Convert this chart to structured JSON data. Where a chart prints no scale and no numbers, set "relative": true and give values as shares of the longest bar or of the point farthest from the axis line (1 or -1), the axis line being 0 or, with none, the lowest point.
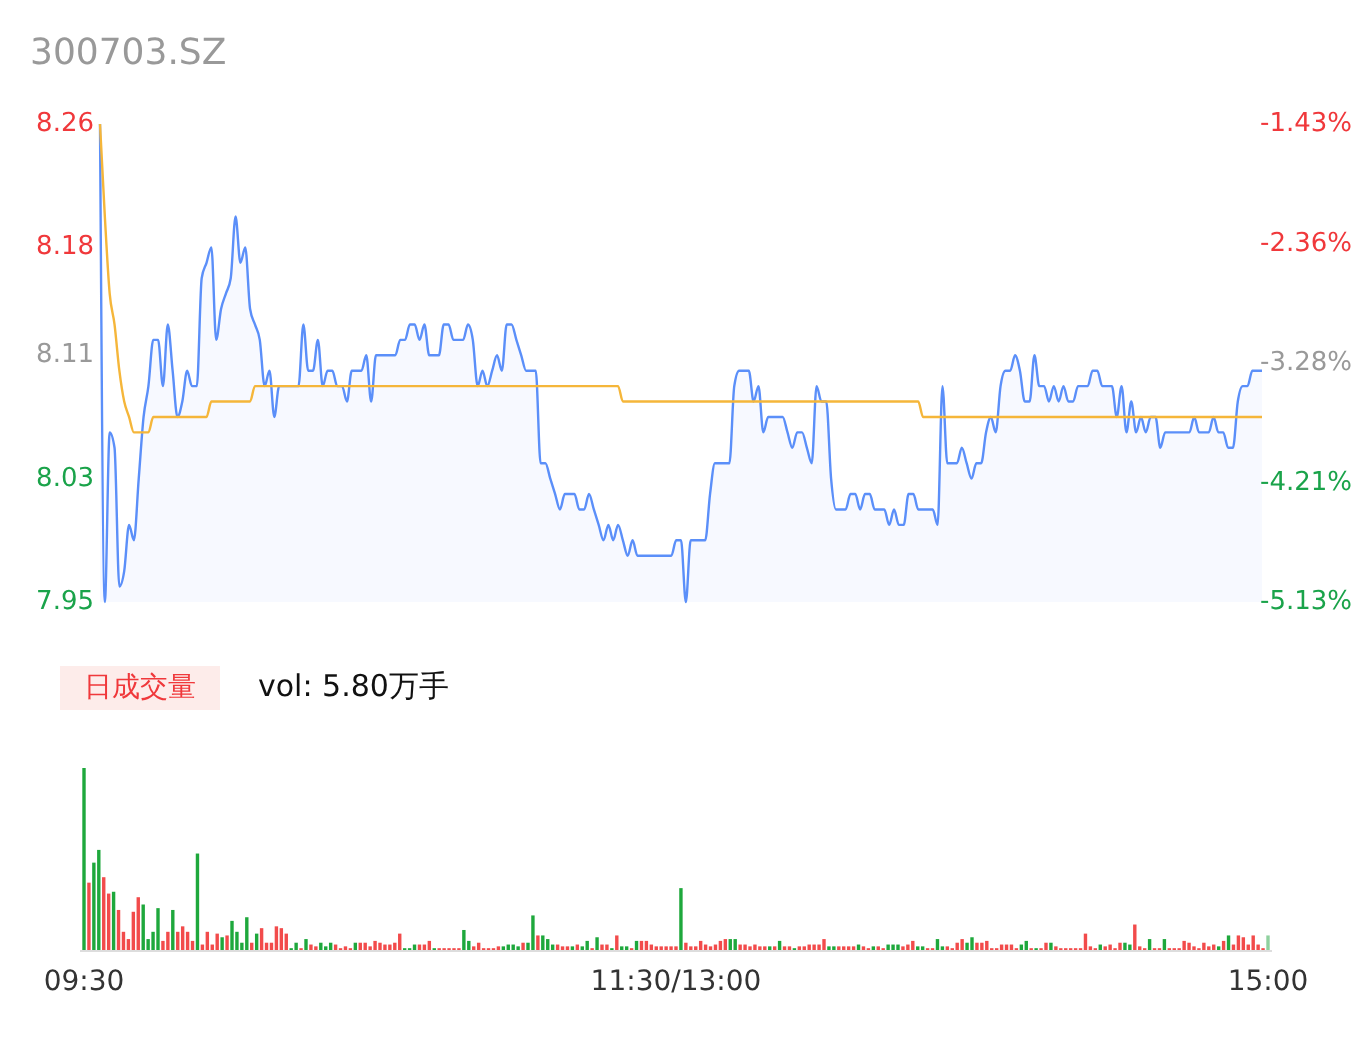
{
  "chart_data": [
    {
      "type": "line",
      "title": "300703.SZ",
      "categories": [
        null,
        null,
        null,
        null,
        null,
        null,
        null,
        null,
        null,
        null,
        null,
        null,
        null,
        null,
        null,
        null,
        null,
        null,
        null,
        null,
        null,
        null,
        null,
        null,
        null,
        null,
        null,
        null,
        null,
        null,
        null,
        null,
        null,
        null,
        null,
        null,
        null,
        null,
        null,
        null,
        null,
        null,
        null,
        null,
        null,
        null,
        null,
        null,
        null,
        null,
        null,
        null,
        null,
        null,
        null,
        null,
        null,
        null,
        null,
        null,
        null,
        null,
        null,
        null,
        null,
        null,
        null,
        null,
        null,
        null,
        null,
        null,
        null,
        null,
        null,
        null,
        null,
        null,
        null,
        null,
        null,
        null,
        null,
        null,
        null,
        null,
        null,
        null,
        null,
        null,
        null,
        null,
        null,
        null,
        null,
        null,
        null,
        null,
        null,
        null,
        null,
        null,
        null,
        null,
        null,
        null,
        null,
        null,
        null,
        null,
        null,
        null,
        null,
        null,
        null,
        null,
        null,
        null,
        null,
        null,
        null,
        null,
        null,
        null,
        null,
        null,
        null,
        null,
        null,
        null,
        null,
        null,
        null,
        null,
        null,
        null,
        null,
        null,
        null,
        null,
        null,
        null,
        null,
        null,
        null,
        null,
        null,
        null,
        null,
        null,
        null,
        null,
        null,
        null,
        null,
        null,
        null,
        null,
        null,
        null,
        null,
        null,
        null,
        null,
        null,
        null,
        null,
        null,
        null,
        null,
        null,
        null,
        null,
        null,
        null,
        null,
        null,
        null,
        null,
        null,
        null,
        null,
        null,
        null,
        null,
        null,
        null,
        null,
        null,
        null,
        null,
        null,
        null,
        null,
        null,
        null,
        null,
        null,
        null,
        null,
        null,
        null,
        null,
        null,
        null,
        null,
        null,
        null,
        null,
        null,
        null,
        null,
        null,
        null,
        null,
        null,
        null,
        null,
        null,
        null,
        null,
        null,
        null,
        null,
        null,
        null,
        null,
        null,
        null,
        null,
        null,
        null,
        null,
        null,
        null,
        null,
        null,
        null,
        null,
        null,
        null
      ],
      "ylim": [
        7.95,
        8.26
      ],
      "yticks": [
        7.95,
        8.03,
        8.11,
        8.18,
        8.26
      ],
      "y2lim": [
        -5.13,
        -1.43
      ],
      "y2ticks": [
        {
          "value": -5.13,
          "label": "-5.13%"
        },
        {
          "value": -4.21,
          "label": "-4.21%"
        },
        {
          "value": -3.28,
          "label": "-3.28%"
        },
        {
          "value": -2.36,
          "label": "-2.36%"
        },
        {
          "value": -1.43,
          "label": "-1.43%"
        }
      ],
      "series": [
        {
          "type": "area",
          "color": "#5b8ff9",
          "values": [
            8.26,
            7.95,
            8.06,
            8.05,
            7.96,
            7.97,
            8.0,
            7.99,
            8.03,
            8.07,
            8.09,
            8.12,
            8.12,
            8.09,
            8.13,
            8.1,
            8.07,
            8.08,
            8.1,
            8.09,
            8.09,
            8.16,
            8.17,
            8.18,
            8.12,
            8.14,
            8.15,
            8.16,
            8.2,
            8.17,
            8.18,
            8.14,
            8.13,
            8.12,
            8.09,
            8.1,
            8.07,
            8.09,
            8.09,
            8.09,
            8.09,
            8.09,
            8.13,
            8.1,
            8.1,
            8.12,
            8.09,
            8.1,
            8.1,
            8.09,
            8.09,
            8.08,
            8.1,
            8.1,
            8.1,
            8.11,
            8.08,
            8.11,
            8.11,
            8.11,
            8.11,
            8.11,
            8.12,
            8.12,
            8.13,
            8.13,
            8.12,
            8.13,
            8.11,
            8.11,
            8.11,
            8.13,
            8.13,
            8.12,
            8.12,
            8.12,
            8.13,
            8.12,
            8.09,
            8.1,
            8.09,
            8.1,
            8.11,
            8.1,
            8.13,
            8.13,
            8.12,
            8.11,
            8.1,
            8.1,
            8.1,
            8.04,
            8.04,
            8.03,
            8.02,
            8.01,
            8.02,
            8.02,
            8.02,
            8.01,
            8.01,
            8.02,
            8.01,
            8.0,
            7.99,
            8.0,
            7.99,
            8.0,
            7.99,
            7.98,
            7.99,
            7.98,
            7.98,
            7.98,
            7.98,
            7.98,
            7.98,
            7.98,
            7.98,
            7.99,
            7.99,
            7.95,
            7.99,
            7.99,
            7.99,
            7.99,
            8.02,
            8.04,
            8.04,
            8.04,
            8.04,
            8.09,
            8.1,
            8.1,
            8.1,
            8.08,
            8.09,
            8.06,
            8.07,
            8.07,
            8.07,
            8.07,
            8.06,
            8.05,
            8.06,
            8.06,
            8.05,
            8.04,
            8.09,
            8.08,
            8.08,
            8.03,
            8.01,
            8.01,
            8.01,
            8.02,
            8.02,
            8.01,
            8.02,
            8.02,
            8.01,
            8.01,
            8.01,
            8.0,
            8.01,
            8.0,
            8.0,
            8.02,
            8.02,
            8.01,
            8.01,
            8.01,
            8.01,
            8.0,
            8.09,
            8.04,
            8.04,
            8.04,
            8.05,
            8.04,
            8.03,
            8.04,
            8.04,
            8.06,
            8.07,
            8.06,
            8.09,
            8.1,
            8.1,
            8.11,
            8.1,
            8.08,
            8.08,
            8.11,
            8.09,
            8.09,
            8.08,
            8.09,
            8.08,
            8.09,
            8.08,
            8.08,
            8.09,
            8.09,
            8.09,
            8.1,
            8.1,
            8.09,
            8.09,
            8.09,
            8.07,
            8.09,
            8.06,
            8.08,
            8.06,
            8.07,
            8.06,
            8.07,
            8.07,
            8.05,
            8.06,
            8.06,
            8.06,
            8.06,
            8.06,
            8.06,
            8.07,
            8.06,
            8.06,
            8.06,
            8.07,
            8.06,
            8.06,
            8.05,
            8.05,
            8.08,
            8.09,
            8.09,
            8.1,
            8.1,
            8.1
          ]
        },
        {
          "type": "line",
          "color": "#f5b63a",
          "values": [
            8.26,
            8.2,
            8.15,
            8.13,
            8.1,
            8.08,
            8.07,
            8.06,
            8.06,
            8.06,
            8.06,
            8.07,
            8.07,
            8.07,
            8.07,
            8.07,
            8.07,
            8.07,
            8.07,
            8.07,
            8.07,
            8.07,
            8.07,
            8.08,
            8.08,
            8.08,
            8.08,
            8.08,
            8.08,
            8.08,
            8.08,
            8.08,
            8.09,
            8.09,
            8.09,
            8.09,
            8.09,
            8.09,
            8.09,
            8.09,
            8.09,
            8.09,
            8.09,
            8.09,
            8.09,
            8.09,
            8.09,
            8.09,
            8.09,
            8.09,
            8.09,
            8.09,
            8.09,
            8.09,
            8.09,
            8.09,
            8.09,
            8.09,
            8.09,
            8.09,
            8.09,
            8.09,
            8.09,
            8.09,
            8.09,
            8.09,
            8.09,
            8.09,
            8.09,
            8.09,
            8.09,
            8.09,
            8.09,
            8.09,
            8.09,
            8.09,
            8.09,
            8.09,
            8.09,
            8.09,
            8.09,
            8.09,
            8.09,
            8.09,
            8.09,
            8.09,
            8.09,
            8.09,
            8.09,
            8.09,
            8.09,
            8.09,
            8.09,
            8.09,
            8.09,
            8.09,
            8.09,
            8.09,
            8.09,
            8.09,
            8.09,
            8.09,
            8.09,
            8.09,
            8.09,
            8.09,
            8.09,
            8.09,
            8.08,
            8.08,
            8.08,
            8.08,
            8.08,
            8.08,
            8.08,
            8.08,
            8.08,
            8.08,
            8.08,
            8.08,
            8.08,
            8.08,
            8.08,
            8.08,
            8.08,
            8.08,
            8.08,
            8.08,
            8.08,
            8.08,
            8.08,
            8.08,
            8.08,
            8.08,
            8.08,
            8.08,
            8.08,
            8.08,
            8.08,
            8.08,
            8.08,
            8.08,
            8.08,
            8.08,
            8.08,
            8.08,
            8.08,
            8.08,
            8.08,
            8.08,
            8.08,
            8.08,
            8.08,
            8.08,
            8.08,
            8.08,
            8.08,
            8.08,
            8.08,
            8.08,
            8.08,
            8.08,
            8.08,
            8.08,
            8.08,
            8.08,
            8.08,
            8.08,
            8.08,
            8.08,
            8.07,
            8.07,
            8.07,
            8.07,
            8.07,
            8.07,
            8.07,
            8.07,
            8.07,
            8.07,
            8.07,
            8.07,
            8.07,
            8.07,
            8.07,
            8.07,
            8.07,
            8.07,
            8.07,
            8.07,
            8.07,
            8.07,
            8.07,
            8.07,
            8.07,
            8.07,
            8.07,
            8.07,
            8.07,
            8.07,
            8.07,
            8.07,
            8.07,
            8.07,
            8.07,
            8.07,
            8.07,
            8.07,
            8.07,
            8.07,
            8.07,
            8.07,
            8.07,
            8.07,
            8.07,
            8.07,
            8.07,
            8.07,
            8.07,
            8.07,
            8.07,
            8.07,
            8.07,
            8.07,
            8.07,
            8.07,
            8.07,
            8.07,
            8.07,
            8.07,
            8.07,
            8.07,
            8.07,
            8.07,
            8.07,
            8.07,
            8.07,
            8.07,
            8.07,
            8.07,
            8.07
          ]
        }
      ]
    },
    {
      "type": "bar",
      "relative": true,
      "annotations": [
        "日成交量",
        "vol: 5.80万手"
      ],
      "categories": [
        "09:30",
        null,
        null,
        null,
        null,
        null,
        null,
        null,
        null,
        null,
        null,
        null,
        null,
        null,
        null,
        null,
        null,
        null,
        null,
        null,
        null,
        null,
        null,
        null,
        null,
        null,
        null,
        null,
        null,
        null,
        null,
        null,
        null,
        null,
        null,
        null,
        null,
        null,
        null,
        null,
        null,
        null,
        null,
        null,
        null,
        null,
        null,
        null,
        null,
        null,
        null,
        null,
        null,
        null,
        null,
        null,
        null,
        null,
        null,
        null,
        null,
        null,
        null,
        null,
        null,
        null,
        null,
        null,
        null,
        null,
        null,
        null,
        null,
        null,
        null,
        null,
        null,
        null,
        null,
        null,
        null,
        null,
        null,
        null,
        null,
        null,
        null,
        null,
        null,
        null,
        null,
        null,
        null,
        null,
        null,
        null,
        null,
        null,
        null,
        null,
        null,
        null,
        null,
        null,
        null,
        null,
        null,
        null,
        null,
        null,
        null,
        null,
        null,
        null,
        null,
        null,
        null,
        null,
        null,
        null,
        "11:30/13:00",
        null,
        null,
        null,
        null,
        null,
        null,
        null,
        null,
        null,
        null,
        null,
        null,
        null,
        null,
        null,
        null,
        null,
        null,
        null,
        null,
        null,
        null,
        null,
        null,
        null,
        null,
        null,
        null,
        null,
        null,
        null,
        null,
        null,
        null,
        null,
        null,
        null,
        null,
        null,
        null,
        null,
        null,
        null,
        null,
        null,
        null,
        null,
        null,
        null,
        null,
        null,
        null,
        null,
        null,
        null,
        null,
        null,
        null,
        null,
        null,
        null,
        null,
        null,
        null,
        null,
        null,
        null,
        null,
        null,
        null,
        null,
        null,
        null,
        null,
        null,
        null,
        null,
        null,
        null,
        null,
        null,
        null,
        null,
        null,
        null,
        null,
        null,
        null,
        null,
        null,
        null,
        null,
        null,
        null,
        null,
        null,
        null,
        null,
        null,
        null,
        null,
        null,
        null,
        null,
        null,
        null,
        null,
        null,
        null,
        null,
        null,
        null,
        null,
        null,
        null,
        null,
        null,
        null,
        null,
        "15:00"
      ],
      "values": [
        1.0,
        0.37,
        0.48,
        0.55,
        0.4,
        0.31,
        0.32,
        0.22,
        0.1,
        0.06,
        0.21,
        0.29,
        0.25,
        0.06,
        0.1,
        0.23,
        0.05,
        0.1,
        0.22,
        0.1,
        0.13,
        0.1,
        0.05,
        0.53,
        0.03,
        0.1,
        0.03,
        0.09,
        0.07,
        0.08,
        0.16,
        0.1,
        0.04,
        0.18,
        0.04,
        0.09,
        0.12,
        0.04,
        0.04,
        0.13,
        0.12,
        0.09,
        0.01,
        0.04,
        0.01,
        0.06,
        0.03,
        0.02,
        0.04,
        0.02,
        0.04,
        0.03,
        0.01,
        0.02,
        0.01,
        0.04,
        0.04,
        0.04,
        0.02,
        0.05,
        0.04,
        0.03,
        0.03,
        0.04,
        0.09,
        0.01,
        0.01,
        0.03,
        0.03,
        0.03,
        0.05,
        0.01,
        0.01,
        0.01,
        0.01,
        0.01,
        0.01,
        0.11,
        0.05,
        0.02,
        0.04,
        0.01,
        0.01,
        0.01,
        0.02,
        0.02,
        0.03,
        0.03,
        0.02,
        0.04,
        0.04,
        0.19,
        0.08,
        0.08,
        0.06,
        0.03,
        0.03,
        0.02,
        0.02,
        0.02,
        0.03,
        0.02,
        0.05,
        0.01,
        0.07,
        0.03,
        0.03,
        0.01,
        0.08,
        0.02,
        0.02,
        0.01,
        0.05,
        0.05,
        0.05,
        0.03,
        0.02,
        0.02,
        0.02,
        0.02,
        0.02,
        0.34,
        0.04,
        0.02,
        0.02,
        0.05,
        0.03,
        0.02,
        0.03,
        0.05,
        0.06,
        0.06,
        0.06,
        0.03,
        0.03,
        0.02,
        0.03,
        0.02,
        0.02,
        0.02,
        0.02,
        0.05,
        0.02,
        0.02,
        0.01,
        0.02,
        0.02,
        0.03,
        0.03,
        0.03,
        0.06,
        0.02,
        0.02,
        0.02,
        0.02,
        0.02,
        0.02,
        0.03,
        0.02,
        0.01,
        0.02,
        0.02,
        0.01,
        0.03,
        0.03,
        0.03,
        0.02,
        0.03,
        0.05,
        0.02,
        0.02,
        0.01,
        0.01,
        0.06,
        0.02,
        0.02,
        0.01,
        0.04,
        0.06,
        0.04,
        0.07,
        0.04,
        0.04,
        0.05,
        0.01,
        0.01,
        0.03,
        0.03,
        0.03,
        0.01,
        0.03,
        0.05,
        0.01,
        0.01,
        0.01,
        0.04,
        0.04,
        0.02,
        0.01,
        0.01,
        0.01,
        0.01,
        0.01,
        0.09,
        0.02,
        0.01,
        0.03,
        0.02,
        0.03,
        0.01,
        0.04,
        0.04,
        0.03,
        0.14,
        0.02,
        0.01,
        0.06,
        0.01,
        0.01,
        0.06,
        0.01,
        0.01,
        0.01,
        0.05,
        0.04,
        0.02,
        0.01,
        0.04,
        0.02,
        0.03,
        0.02,
        0.05,
        0.08,
        0.03,
        0.08,
        0.07,
        0.03,
        0.08,
        0.03,
        0.01,
        0.08
      ],
      "colors": [
        "#1ea83c",
        "#f24b4b",
        "#1ea83c",
        "#1ea83c",
        "#f24b4b",
        "#f24b4b",
        "#1ea83c",
        "#f24b4b",
        "#f24b4b",
        "#f24b4b",
        "#f24b4b",
        "#f24b4b",
        "#1ea83c",
        "#1ea83c",
        "#1ea83c",
        "#1ea83c",
        "#f24b4b",
        "#f24b4b",
        "#1ea83c",
        "#f24b4b",
        "#f24b4b",
        "#f24b4b",
        "#f24b4b",
        "#1ea83c",
        "#f24b4b",
        "#f24b4b",
        "#f24b4b",
        "#f24b4b",
        "#1ea83c",
        "#f24b4b",
        "#1ea83c",
        "#1ea83c",
        "#1ea83c",
        "#1ea83c",
        "#f24b4b",
        "#1ea83c",
        "#f24b4b",
        "#f24b4b",
        "#f24b4b",
        "#f24b4b",
        "#f24b4b",
        "#f24b4b",
        "#1ea83c",
        "#1ea83c",
        "#f24b4b",
        "#1ea83c",
        "#f24b4b",
        "#f24b4b",
        "#1ea83c",
        "#1ea83c",
        "#1ea83c",
        "#f24b4b",
        "#f24b4b",
        "#f24b4b",
        "#f24b4b",
        "#1ea83c",
        "#f24b4b",
        "#f24b4b",
        "#f24b4b",
        "#f24b4b",
        "#f24b4b",
        "#f24b4b",
        "#f24b4b",
        "#f24b4b",
        "#f24b4b",
        "#1ea83c",
        "#1ea83c",
        "#1ea83c",
        "#f24b4b",
        "#f24b4b",
        "#f24b4b",
        "#1ea83c",
        "#f24b4b",
        "#f24b4b",
        "#f24b4b",
        "#f24b4b",
        "#f24b4b",
        "#1ea83c",
        "#1ea83c",
        "#f24b4b",
        "#f24b4b",
        "#f24b4b",
        "#f24b4b",
        "#f24b4b",
        "#f24b4b",
        "#1ea83c",
        "#1ea83c",
        "#1ea83c",
        "#1ea83c",
        "#f24b4b",
        "#1ea83c",
        "#1ea83c",
        "#f24b4b",
        "#1ea83c",
        "#1ea83c",
        "#1ea83c",
        "#f24b4b",
        "#f24b4b",
        "#f24b4b",
        "#1ea83c",
        "#f24b4b",
        "#1ea83c",
        "#1ea83c",
        "#f24b4b",
        "#1ea83c",
        "#f24b4b",
        "#f24b4b",
        "#1ea83c",
        "#f24b4b",
        "#1ea83c",
        "#1ea83c",
        "#f24b4b",
        "#1ea83c",
        "#f24b4b",
        "#f24b4b",
        "#f24b4b",
        "#f24b4b",
        "#f24b4b",
        "#f24b4b",
        "#f24b4b",
        "#f24b4b",
        "#1ea83c",
        "#f24b4b",
        "#f24b4b",
        "#f24b4b",
        "#f24b4b",
        "#f24b4b",
        "#f24b4b",
        "#f24b4b",
        "#f24b4b",
        "#f24b4b",
        "#1ea83c",
        "#1ea83c",
        "#f24b4b",
        "#f24b4b",
        "#f24b4b",
        "#f24b4b",
        "#f24b4b",
        "#f24b4b",
        "#1ea83c",
        "#f24b4b",
        "#1ea83c",
        "#f24b4b",
        "#f24b4b",
        "#1ea83c",
        "#f24b4b",
        "#f24b4b",
        "#f24b4b",
        "#f24b4b",
        "#f24b4b",
        "#f24b4b",
        "#1ea83c",
        "#1ea83c",
        "#f24b4b",
        "#f24b4b",
        "#f24b4b",
        "#f24b4b",
        "#1ea83c",
        "#f24b4b",
        "#f24b4b",
        "#1ea83c",
        "#f24b4b",
        "#f24b4b",
        "#1ea83c",
        "#1ea83c",
        "#1ea83c",
        "#f24b4b",
        "#f24b4b",
        "#f24b4b",
        "#1ea83c",
        "#1ea83c",
        "#f24b4b",
        "#f24b4b",
        "#1ea83c",
        "#1ea83c",
        "#f24b4b",
        "#f24b4b",
        "#f24b4b",
        "#f24b4b",
        "#1ea83c",
        "#1ea83c",
        "#f24b4b",
        "#f24b4b",
        "#f24b4b",
        "#f24b4b",
        "#f24b4b",
        "#f24b4b",
        "#f24b4b",
        "#f24b4b",
        "#f24b4b",
        "#1ea83c",
        "#1ea83c",
        "#f24b4b",
        "#1ea83c",
        "#f24b4b",
        "#f24b4b",
        "#1ea83c",
        "#f24b4b",
        "#f24b4b",
        "#f24b4b",
        "#f24b4b",
        "#f24b4b",
        "#f24b4b",
        "#f24b4b",
        "#f24b4b",
        "#f24b4b",
        "#1ea83c",
        "#f24b4b",
        "#f24b4b",
        "#f24b4b",
        "#f24b4b",
        "#1ea83c",
        "#1ea83c",
        "#f24b4b",
        "#f24b4b",
        "#f24b4b",
        "#1ea83c",
        "#f24b4b",
        "#f24b4b",
        "#1ea83c",
        "#f24b4b",
        "#f24b4b",
        "#f24b4b",
        "#f24b4b",
        "#f24b4b",
        "#f24b4b",
        "#f24b4b",
        "#f24b4b",
        "#f24b4b",
        "#f24b4b",
        "#1ea83c",
        "#f24b4b",
        "#1ea83c",
        "#f24b4b",
        "#f24b4b",
        "#f24b4b",
        "#f24b4b",
        "#f24b4b",
        "#f24b4b",
        "#f24b4b",
        "#8fd19e"
      ]
    }
  ]
}
